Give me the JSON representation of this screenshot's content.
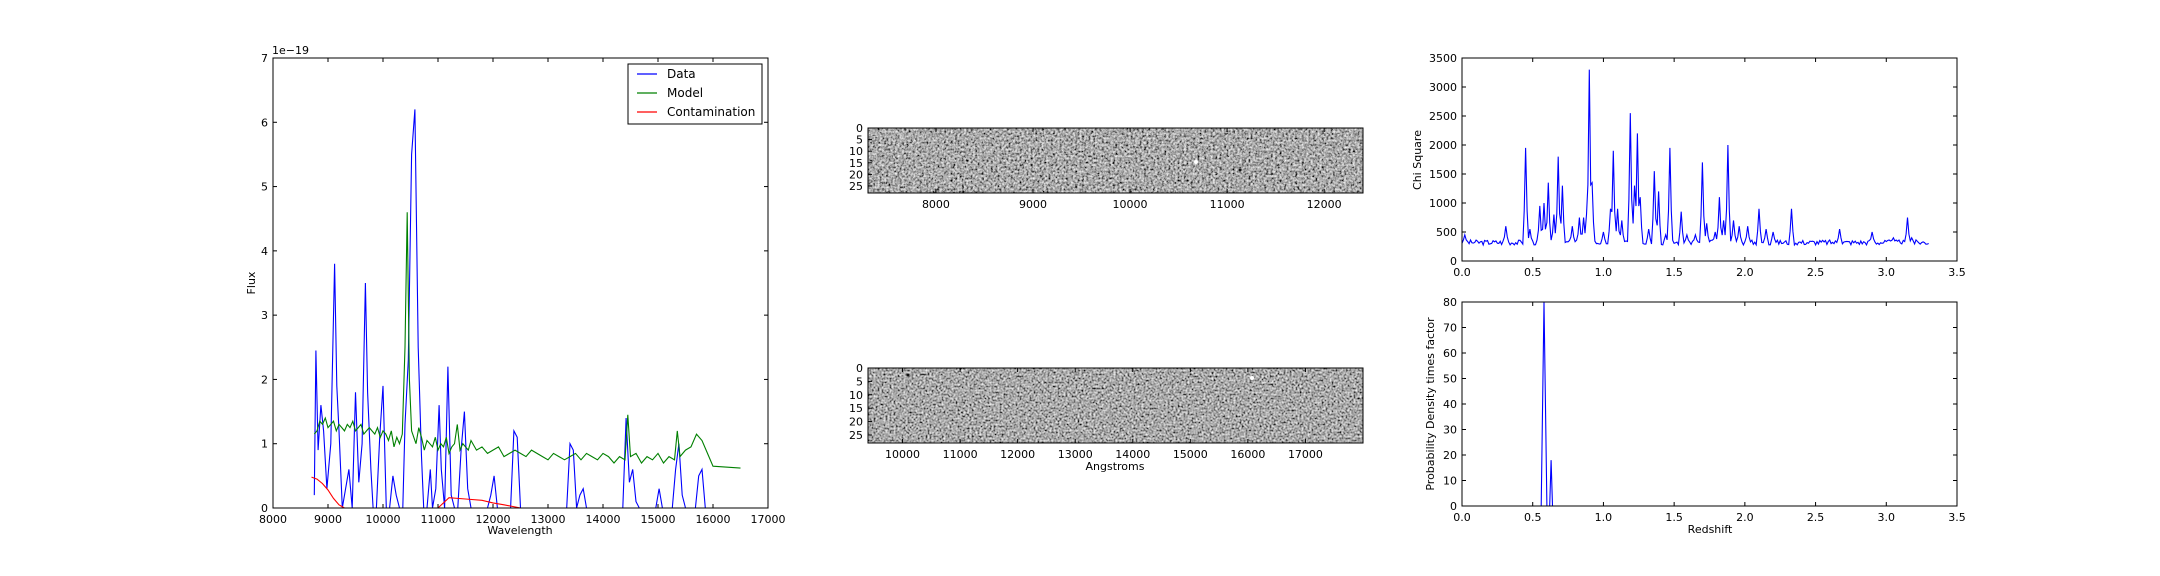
{
  "chart_data": [
    {
      "id": "spectrum",
      "type": "line",
      "title": "",
      "xlabel": "Wavelength",
      "ylabel": "Flux",
      "offset_label": "1e−19",
      "xlim": [
        8000,
        17000
      ],
      "ylim": [
        0,
        7
      ],
      "xticks": [
        8000,
        9000,
        10000,
        11000,
        12000,
        13000,
        14000,
        15000,
        16000,
        17000
      ],
      "xtick_labels": [
        "8000",
        "9000",
        "10000",
        "11000",
        "12000",
        "13000",
        "14000",
        "15000",
        "16000",
        "17000"
      ],
      "yticks": [
        0,
        1,
        2,
        3,
        4,
        5,
        6,
        7
      ],
      "ytick_labels": [
        "0",
        "1",
        "2",
        "3",
        "4",
        "5",
        "6",
        "7"
      ],
      "legend": "top-right",
      "series": [
        {
          "name": "Data",
          "color": "#0000ff",
          "x": [
            8750,
            8780,
            8820,
            8870,
            8920,
            8980,
            9050,
            9120,
            9160,
            9200,
            9260,
            9320,
            9380,
            9440,
            9500,
            9560,
            9620,
            9680,
            9720,
            9780,
            9820,
            9880,
            9940,
            10000,
            10060,
            10120,
            10180,
            10240,
            10300,
            10360,
            10400,
            10460,
            10520,
            10580,
            10640,
            10700,
            10740,
            10800,
            10860,
            10900,
            10960,
            11020,
            11060,
            11120,
            11180,
            11240,
            11300,
            11360,
            11420,
            11480,
            11540,
            11600,
            11660,
            11720,
            11780,
            11840,
            11900,
            11960,
            12020,
            12080,
            12140,
            12200,
            12260,
            12320,
            12380,
            12440,
            12500,
            12560,
            12620,
            12680,
            12740,
            12800,
            12860,
            12920,
            12980,
            13040,
            13100,
            13160,
            13220,
            13280,
            13340,
            13400,
            13460,
            13520,
            13580,
            13640,
            13700,
            13760,
            13820,
            13880,
            13940,
            14000,
            14060,
            14120,
            14180,
            14240,
            14300,
            14360,
            14420,
            14480,
            14540,
            14600,
            14660,
            14720,
            14780,
            14840,
            14900,
            14960,
            15020,
            15080,
            15140,
            15200,
            15260,
            15320,
            15380,
            15440,
            15500,
            15560,
            15620,
            15680,
            15740,
            15800,
            15860,
            15920,
            15980
          ],
          "y": [
            0.2,
            2.45,
            0.9,
            1.6,
            1.2,
            0.3,
            1.0,
            3.8,
            1.9,
            1.2,
            0.0,
            0.3,
            0.6,
            0.0,
            1.8,
            0.4,
            1.0,
            3.5,
            1.8,
            0.6,
            0.0,
            0.0,
            1.1,
            1.9,
            0.0,
            0.0,
            0.5,
            0.2,
            0.0,
            0.0,
            1.3,
            2.3,
            5.5,
            6.2,
            2.5,
            0.8,
            0.0,
            0.0,
            0.6,
            0.0,
            0.3,
            1.6,
            0.6,
            0.0,
            2.2,
            0.2,
            0.0,
            0.0,
            0.9,
            1.5,
            0.3,
            0.0,
            0.0,
            0.0,
            0.0,
            0.0,
            0.0,
            0.2,
            0.5,
            0.0,
            0.0,
            0.0,
            0.0,
            0.0,
            1.2,
            1.1,
            0.0,
            0.0,
            0.0,
            0.0,
            0.0,
            0.0,
            0.0,
            0.0,
            0.0,
            0.0,
            0.0,
            0.0,
            0.0,
            0.0,
            0.0,
            1.0,
            0.9,
            0.0,
            0.2,
            0.3,
            0.0,
            0.0,
            0.0,
            0.0,
            0.0,
            0.0,
            0.0,
            0.0,
            0.0,
            0.0,
            0.0,
            0.0,
            1.4,
            0.4,
            0.6,
            0.1,
            0.0,
            0.0,
            0.0,
            0.0,
            0.0,
            0.0,
            0.3,
            0.0,
            0.0,
            0.0,
            0.0,
            0.6,
            1.0,
            0.2,
            0.0,
            0.0,
            0.0,
            0.0,
            0.5,
            0.6,
            0.0,
            0.0,
            0.0
          ]
        },
        {
          "name": "Model",
          "color": "#008000",
          "x": [
            8750,
            8800,
            8850,
            8900,
            8950,
            9000,
            9050,
            9100,
            9150,
            9200,
            9250,
            9300,
            9350,
            9400,
            9450,
            9500,
            9550,
            9600,
            9650,
            9700,
            9750,
            9800,
            9850,
            9900,
            9950,
            10000,
            10050,
            10100,
            10150,
            10200,
            10250,
            10300,
            10350,
            10400,
            10440,
            10480,
            10520,
            10560,
            10600,
            10650,
            10700,
            10750,
            10800,
            10850,
            10900,
            10950,
            11000,
            11050,
            11100,
            11150,
            11200,
            11250,
            11300,
            11350,
            11400,
            11450,
            11500,
            11550,
            11600,
            11700,
            11800,
            11900,
            12000,
            12100,
            12200,
            12300,
            12400,
            12500,
            12600,
            12700,
            12800,
            12900,
            13000,
            13100,
            13200,
            13300,
            13400,
            13500,
            13600,
            13700,
            13800,
            13900,
            14000,
            14100,
            14200,
            14300,
            14400,
            14450,
            14500,
            14600,
            14700,
            14800,
            14900,
            15000,
            15100,
            15200,
            15300,
            15350,
            15400,
            15500,
            15600,
            15700,
            15800,
            15900,
            16000,
            16500
          ],
          "y": [
            1.15,
            1.2,
            1.35,
            1.3,
            1.4,
            1.25,
            1.3,
            1.35,
            1.2,
            1.3,
            1.25,
            1.2,
            1.3,
            1.25,
            1.35,
            1.2,
            1.25,
            1.3,
            1.15,
            1.2,
            1.25,
            1.2,
            1.15,
            1.25,
            1.1,
            1.2,
            1.15,
            1.05,
            1.2,
            0.95,
            1.1,
            1.0,
            1.15,
            2.5,
            4.6,
            2.0,
            1.2,
            1.1,
            1.0,
            1.25,
            1.1,
            0.9,
            1.05,
            1.0,
            0.95,
            1.1,
            0.9,
            1.0,
            0.95,
            1.1,
            0.85,
            0.95,
            1.0,
            1.3,
            0.9,
            1.0,
            0.95,
            0.9,
            1.05,
            0.9,
            0.95,
            0.85,
            0.9,
            0.95,
            0.8,
            0.85,
            0.9,
            0.85,
            0.8,
            0.9,
            0.85,
            0.8,
            0.75,
            0.85,
            0.8,
            0.75,
            0.8,
            0.85,
            0.75,
            0.85,
            0.8,
            0.75,
            0.85,
            0.8,
            0.7,
            0.8,
            0.75,
            1.45,
            0.8,
            0.85,
            0.7,
            0.8,
            0.75,
            0.85,
            0.7,
            0.8,
            0.75,
            1.2,
            0.8,
            0.9,
            0.95,
            1.15,
            1.05,
            0.85,
            0.65,
            0.62
          ]
        },
        {
          "name": "Contamination",
          "color": "#ff0000",
          "x": [
            8700,
            8800,
            8900,
            9000,
            9100,
            9200,
            9300,
            9400,
            9500,
            10000,
            10500,
            11000,
            11200,
            11500,
            11800,
            12000,
            12200,
            12500,
            12700,
            13000,
            13500,
            14000,
            14500,
            15000,
            15500,
            16000,
            16500
          ],
          "y": [
            0.48,
            0.45,
            0.38,
            0.28,
            0.15,
            0.05,
            0.0,
            0.0,
            0.0,
            0.0,
            0.0,
            0.0,
            0.16,
            0.14,
            0.12,
            0.08,
            0.05,
            0.0,
            0.0,
            0.0,
            0.0,
            0.0,
            0.0,
            0.0,
            0.0,
            0.0,
            0.0
          ]
        }
      ]
    },
    {
      "id": "image2d-top",
      "type": "heatmap",
      "title": "",
      "xlabel": "",
      "ylabel": "",
      "xlim": [
        7300,
        12400
      ],
      "ylim": [
        28,
        0
      ],
      "xticks": [
        8000,
        9000,
        10000,
        11000,
        12000
      ],
      "xtick_labels": [
        "8000",
        "9000",
        "10000",
        "11000",
        "12000"
      ],
      "yticks": [
        0,
        5,
        10,
        15,
        20,
        25
      ],
      "ytick_labels": [
        "0",
        "5",
        "10",
        "15",
        "20",
        "25"
      ]
    },
    {
      "id": "image2d-bottom",
      "type": "heatmap",
      "title": "",
      "xlabel": "Angstroms",
      "ylabel": "",
      "xlim": [
        9400,
        18000
      ],
      "ylim": [
        28,
        0
      ],
      "xticks": [
        10000,
        11000,
        12000,
        13000,
        14000,
        15000,
        16000,
        17000
      ],
      "xtick_labels": [
        "10000",
        "11000",
        "12000",
        "13000",
        "14000",
        "15000",
        "16000",
        "17000"
      ],
      "yticks": [
        0,
        5,
        10,
        15,
        20,
        25
      ],
      "ytick_labels": [
        "0",
        "5",
        "10",
        "15",
        "20",
        "25"
      ]
    },
    {
      "id": "chi-square",
      "type": "line",
      "title": "",
      "xlabel": "",
      "ylabel": "Chi Square",
      "xlim": [
        0,
        3.5
      ],
      "ylim": [
        0,
        3500
      ],
      "xticks": [
        0,
        0.5,
        1.0,
        1.5,
        2.0,
        2.5,
        3.0,
        3.5
      ],
      "xtick_labels": [
        "0.0",
        "0.5",
        "1.0",
        "1.5",
        "2.0",
        "2.5",
        "3.0",
        "3.5"
      ],
      "yticks": [
        0,
        500,
        1000,
        1500,
        2000,
        2500,
        3000,
        3500
      ],
      "ytick_labels": [
        "0",
        "500",
        "1000",
        "1500",
        "2000",
        "2500",
        "3000",
        "3500"
      ],
      "series": [
        {
          "color": "#0000ff",
          "peaks": [
            [
              0.02,
              450
            ],
            [
              0.31,
              600
            ],
            [
              0.45,
              1950
            ],
            [
              0.48,
              550
            ],
            [
              0.55,
              950
            ],
            [
              0.58,
              1000
            ],
            [
              0.61,
              1350
            ],
            [
              0.65,
              800
            ],
            [
              0.68,
              1800
            ],
            [
              0.71,
              1300
            ],
            [
              0.78,
              600
            ],
            [
              0.83,
              750
            ],
            [
              0.86,
              750
            ],
            [
              0.88,
              800
            ],
            [
              0.9,
              3300
            ],
            [
              0.92,
              1350
            ],
            [
              1.0,
              500
            ],
            [
              1.05,
              900
            ],
            [
              1.07,
              1900
            ],
            [
              1.1,
              900
            ],
            [
              1.13,
              700
            ],
            [
              1.19,
              2550
            ],
            [
              1.22,
              1300
            ],
            [
              1.24,
              2200
            ],
            [
              1.26,
              1100
            ],
            [
              1.32,
              550
            ],
            [
              1.36,
              1550
            ],
            [
              1.39,
              1200
            ],
            [
              1.44,
              450
            ],
            [
              1.47,
              1950
            ],
            [
              1.55,
              850
            ],
            [
              1.59,
              450
            ],
            [
              1.65,
              450
            ],
            [
              1.7,
              1700
            ],
            [
              1.73,
              650
            ],
            [
              1.79,
              500
            ],
            [
              1.82,
              1100
            ],
            [
              1.85,
              700
            ],
            [
              1.88,
              2000
            ],
            [
              1.92,
              700
            ],
            [
              1.96,
              600
            ],
            [
              2.02,
              600
            ],
            [
              2.1,
              900
            ],
            [
              2.15,
              550
            ],
            [
              2.2,
              500
            ],
            [
              2.33,
              900
            ],
            [
              2.67,
              550
            ],
            [
              2.9,
              500
            ],
            [
              3.05,
              400
            ],
            [
              3.15,
              750
            ],
            [
              3.18,
              400
            ]
          ],
          "baseline": 320,
          "x_end": 3.3
        }
      ]
    },
    {
      "id": "pdf",
      "type": "line",
      "title": "",
      "xlabel": "Redshift",
      "ylabel": "Probability Density times factor",
      "xlim": [
        0,
        3.5
      ],
      "ylim": [
        0,
        80
      ],
      "xticks": [
        0,
        0.5,
        1.0,
        1.5,
        2.0,
        2.5,
        3.0,
        3.5
      ],
      "xtick_labels": [
        "0.0",
        "0.5",
        "1.0",
        "1.5",
        "2.0",
        "2.5",
        "3.0",
        "3.5"
      ],
      "yticks": [
        0,
        10,
        20,
        30,
        40,
        50,
        60,
        70,
        80
      ],
      "ytick_labels": [
        "0",
        "10",
        "20",
        "30",
        "40",
        "50",
        "60",
        "70",
        "80"
      ],
      "series": [
        {
          "color": "#0000ff",
          "x": [
            0.0,
            0.5,
            0.54,
            0.56,
            0.58,
            0.6,
            0.62,
            0.63,
            0.64,
            0.66,
            0.68,
            1.0,
            2.0,
            3.0,
            3.3
          ],
          "y": [
            0,
            0,
            0,
            0,
            80,
            0,
            0,
            18,
            0,
            0,
            0,
            0,
            0,
            0,
            0
          ]
        },
        {
          "color": "#ff0000",
          "x": [
            0.0,
            3.3
          ],
          "y": [
            0,
            0
          ]
        }
      ]
    }
  ]
}
